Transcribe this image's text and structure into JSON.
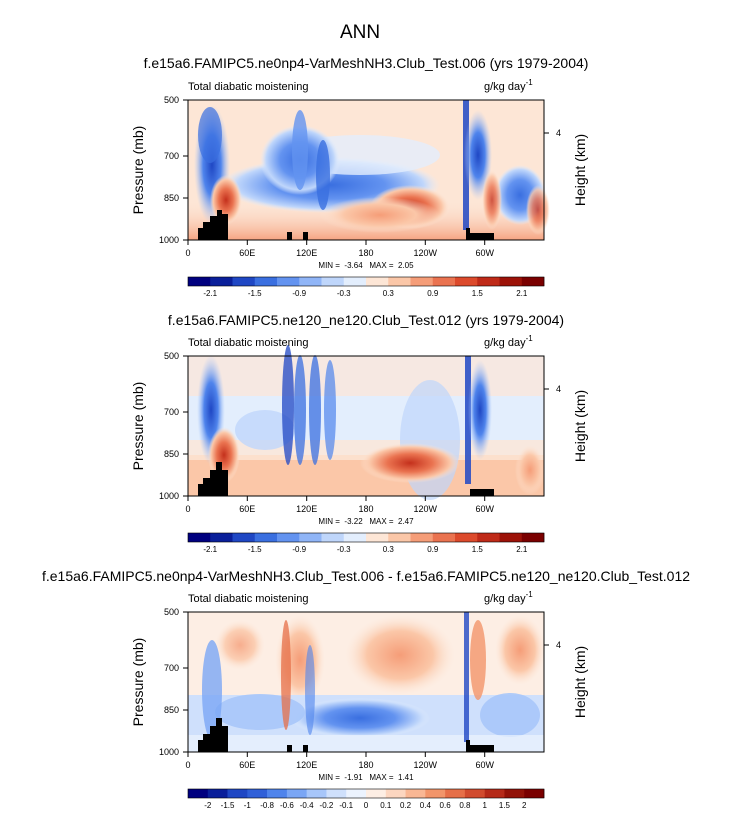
{
  "figure": {
    "main_title": "ANN"
  },
  "chart_data": [
    {
      "type": "heatmap",
      "title": "f.e15a6.FAMIPC5.ne0np4-VarMeshNH3.Club_Test.006 (yrs 1979-2004)",
      "left_label": "Total diabatic moistening",
      "units_text": "g/kg day",
      "units_exp": "-1",
      "ylabel": "Pressure (mb)",
      "y2label": "Height (km)",
      "y2_ticks": [
        4
      ],
      "yticks": [
        500,
        700,
        850,
        1000
      ],
      "xtick_labels": [
        "0",
        "60E",
        "120E",
        "180",
        "120W",
        "60W"
      ],
      "xlim": [
        0,
        360
      ],
      "ylim": [
        1000,
        500
      ],
      "stat_text": "MIN =  -3.64   MAX =  2.05",
      "min": -3.64,
      "max": 2.05,
      "colorbar_levels": [
        "-2.1",
        "-1.5",
        "-0.9",
        "-0.3",
        "0.3",
        "0.9",
        "1.5",
        "2.1"
      ]
    },
    {
      "type": "heatmap",
      "title": "f.e15a6.FAMIPC5.ne120_ne120.Club_Test.012 (yrs 1979-2004)",
      "left_label": "Total diabatic moistening",
      "units_text": "g/kg day",
      "units_exp": "-1",
      "ylabel": "Pressure (mb)",
      "y2label": "Height (km)",
      "y2_ticks": [
        4
      ],
      "yticks": [
        500,
        700,
        850,
        1000
      ],
      "xtick_labels": [
        "0",
        "60E",
        "120E",
        "180",
        "120W",
        "60W"
      ],
      "xlim": [
        0,
        360
      ],
      "ylim": [
        1000,
        500
      ],
      "stat_text": "MIN =  -3.22   MAX =  2.47",
      "min": -3.22,
      "max": 2.47,
      "colorbar_levels": [
        "-2.1",
        "-1.5",
        "-0.9",
        "-0.3",
        "0.3",
        "0.9",
        "1.5",
        "2.1"
      ]
    },
    {
      "type": "heatmap",
      "title": "f.e15a6.FAMIPC5.ne0np4-VarMeshNH3.Club_Test.006 - f.e15a6.FAMIPC5.ne120_ne120.Club_Test.012",
      "left_label": "Total diabatic moistening",
      "units_text": "g/kg day",
      "units_exp": "-1",
      "ylabel": "Pressure (mb)",
      "y2label": "Height (km)",
      "y2_ticks": [
        4
      ],
      "yticks": [
        500,
        700,
        850,
        1000
      ],
      "xtick_labels": [
        "0",
        "60E",
        "120E",
        "180",
        "120W",
        "60W"
      ],
      "xlim": [
        0,
        360
      ],
      "ylim": [
        1000,
        500
      ],
      "stat_text": "MIN =  -1.91   MAX =  1.41",
      "min": -1.91,
      "max": 1.41,
      "colorbar_levels": [
        "-2",
        "-1.5",
        "-1",
        "-0.8",
        "-0.6",
        "-0.4",
        "-0.2",
        "-0.1",
        "0",
        "0.1",
        "0.2",
        "0.4",
        "0.6",
        "0.8",
        "1",
        "1.5",
        "2"
      ]
    }
  ],
  "colors": {
    "background": "#ffffff",
    "colorbar": [
      "#00007f",
      "#0a1f9a",
      "#1f47c4",
      "#3a6fe0",
      "#6393f0",
      "#90b5f7",
      "#bfd6fb",
      "#e3eefd",
      "#fde6d6",
      "#fbc7a8",
      "#f59d78",
      "#ea7350",
      "#dc4a2c",
      "#bf2a18",
      "#9c1208",
      "#7a0000"
    ],
    "diffbar": [
      "#00007f",
      "#0a1f9a",
      "#1f47c4",
      "#3060d8",
      "#4f84ec",
      "#7aa6f5",
      "#a7c6fa",
      "#cfe0fc",
      "#ecf3fe",
      "#fdeee4",
      "#fcd6c0",
      "#f9b794",
      "#f2956a",
      "#e66f48",
      "#d14b2e",
      "#b52a19",
      "#921208",
      "#7a0000"
    ]
  }
}
